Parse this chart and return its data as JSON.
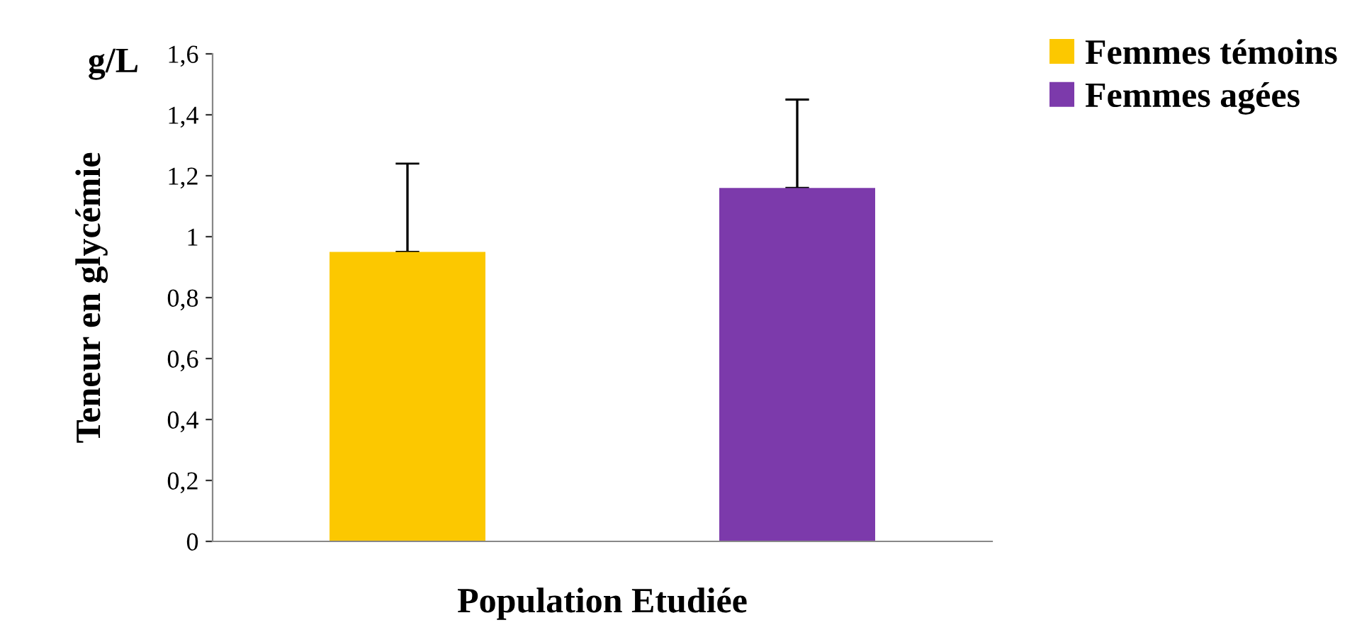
{
  "chart_data": {
    "type": "bar",
    "ylabel": "Teneur en glycémie",
    "xlabel": "Population Etudiée",
    "annotations": [
      "g/L"
    ],
    "categories": [
      null
    ],
    "series": [
      {
        "name": "Femmes témoins",
        "color": "#fcc800",
        "values": [
          0.95
        ],
        "errors": [
          [
            0.95,
            1.24
          ]
        ]
      },
      {
        "name": "Femmes agées",
        "color": "#7c3aab",
        "values": [
          1.16
        ],
        "errors": [
          [
            1.16,
            1.45
          ]
        ]
      }
    ],
    "ylim": [
      0,
      1.6
    ],
    "yticks": [
      0,
      {
        "value": 0.2,
        "label": "0,2"
      },
      {
        "value": 0.4,
        "label": "0,4"
      },
      {
        "value": 0.6,
        "label": "0,6"
      },
      {
        "value": 0.8,
        "label": "0,8"
      },
      1,
      {
        "value": 1.2,
        "label": "1,2"
      },
      {
        "value": 1.4,
        "label": "1,4"
      },
      {
        "value": 1.6,
        "label": "1,6"
      }
    ],
    "grid": false,
    "legend": "top right"
  }
}
